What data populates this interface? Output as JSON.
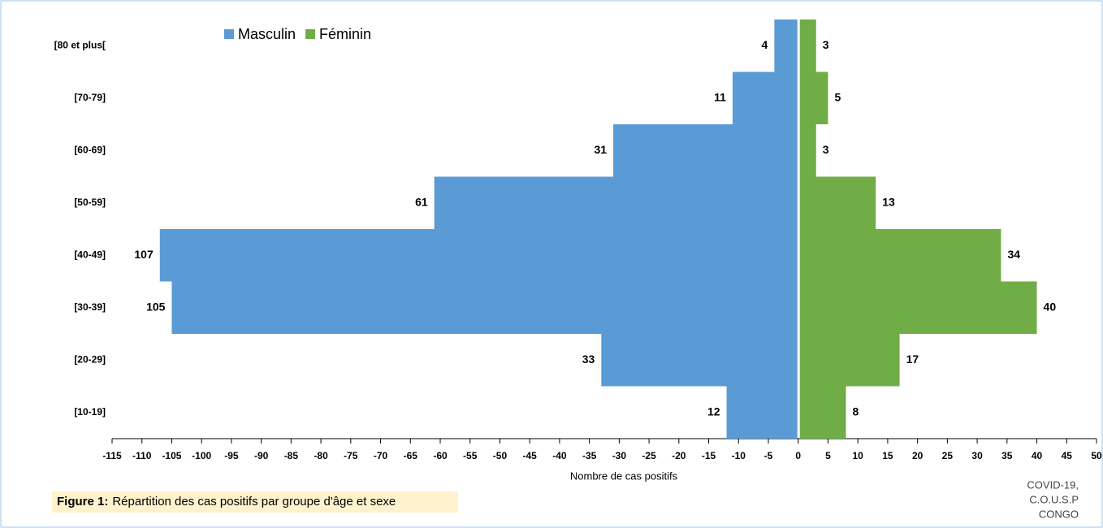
{
  "chart_data": {
    "type": "bar",
    "orientation": "horizontal",
    "categories": [
      "[80 et plus[",
      "[70-79]",
      "[60-69]",
      "[50-59]",
      "[40-49]",
      "[30-39]",
      "[20-29]",
      "[10-19]"
    ],
    "series": [
      {
        "name": "Masculin",
        "color": "#5b9bd5",
        "values": [
          -4,
          -11,
          -31,
          -61,
          -107,
          -105,
          -33,
          -12
        ],
        "value_labels": [
          "4",
          "11",
          "31",
          "61",
          "107",
          "105",
          "33",
          "12"
        ]
      },
      {
        "name": "Féminin",
        "color": "#70ad47",
        "values": [
          3,
          5,
          3,
          13,
          34,
          40,
          17,
          8
        ]
      }
    ],
    "xlim": [
      -115,
      50
    ],
    "xticks": [
      -115,
      -110,
      -105,
      -100,
      -95,
      -90,
      -85,
      -80,
      -75,
      -70,
      -65,
      -60,
      -55,
      -50,
      -45,
      -40,
      -35,
      -30,
      -25,
      -20,
      -15,
      -10,
      -5,
      0,
      5,
      10,
      15,
      20,
      25,
      30,
      35,
      40,
      45,
      50
    ],
    "xlabel": "Nombre de cas positifs",
    "legend": "top-left",
    "caption": {
      "label": "Figure 1:",
      "text": "Répartition des cas positifs par groupe d'âge et sexe"
    },
    "source": [
      "COVID-19,",
      "C.O.U.S.P",
      "CONGO"
    ]
  }
}
